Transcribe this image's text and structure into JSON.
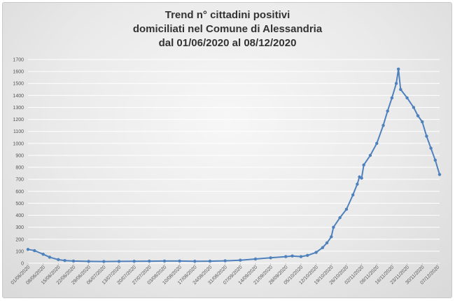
{
  "chart_data": {
    "type": "line",
    "title": [
      "Trend n° cittadini positivi",
      "domiciliati nel Comune di Alessandria",
      "dal 01/06/2020 al 08/12/2020"
    ],
    "x_start": "01/06/2020",
    "x_end": "08/12/2020",
    "x_tick_labels": [
      "01/06/2020",
      "08/06/2020",
      "15/06/2020",
      "22/06/2020",
      "29/06/2020",
      "06/07/2020",
      "13/07/2020",
      "20/07/2020",
      "27/07/2020",
      "03/08/2020",
      "10/08/2020",
      "17/08/2020",
      "24/08/2020",
      "31/08/2020",
      "07/09/2020",
      "14/09/2020",
      "21/09/2020",
      "28/09/2020",
      "05/10/2020",
      "12/10/2020",
      "19/10/2020",
      "26/10/2020",
      "02/11/2020",
      "09/11/2020",
      "16/11/2020",
      "23/11/2020",
      "30/11/2020",
      "07/12/2020"
    ],
    "ylim": [
      0,
      1700
    ],
    "y_ticks": [
      0,
      100,
      200,
      300,
      400,
      500,
      600,
      700,
      800,
      900,
      1000,
      1100,
      1200,
      1300,
      1400,
      1500,
      1600,
      1700
    ],
    "grid": "horizontal",
    "legend": "none",
    "color": "#4f81bd",
    "series": [
      {
        "points": [
          [
            "01/06/2020",
            115
          ],
          [
            "04/06/2020",
            105
          ],
          [
            "08/06/2020",
            75
          ],
          [
            "11/06/2020",
            50
          ],
          [
            "15/06/2020",
            30
          ],
          [
            "18/06/2020",
            22
          ],
          [
            "22/06/2020",
            18
          ],
          [
            "29/06/2020",
            15
          ],
          [
            "06/07/2020",
            14
          ],
          [
            "13/07/2020",
            15
          ],
          [
            "20/07/2020",
            16
          ],
          [
            "27/07/2020",
            17
          ],
          [
            "03/08/2020",
            18
          ],
          [
            "10/08/2020",
            18
          ],
          [
            "17/08/2020",
            16
          ],
          [
            "24/08/2020",
            17
          ],
          [
            "31/08/2020",
            20
          ],
          [
            "07/09/2020",
            25
          ],
          [
            "14/09/2020",
            35
          ],
          [
            "21/09/2020",
            45
          ],
          [
            "28/09/2020",
            55
          ],
          [
            "01/10/2020",
            60
          ],
          [
            "05/10/2020",
            55
          ],
          [
            "08/10/2020",
            65
          ],
          [
            "12/10/2020",
            90
          ],
          [
            "15/10/2020",
            130
          ],
          [
            "17/10/2020",
            170
          ],
          [
            "19/10/2020",
            220
          ],
          [
            "20/10/2020",
            300
          ],
          [
            "23/10/2020",
            380
          ],
          [
            "26/10/2020",
            450
          ],
          [
            "29/10/2020",
            570
          ],
          [
            "31/10/2020",
            660
          ],
          [
            "01/11/2020",
            720
          ],
          [
            "02/11/2020",
            710
          ],
          [
            "03/11/2020",
            820
          ],
          [
            "06/11/2020",
            900
          ],
          [
            "09/11/2020",
            1000
          ],
          [
            "12/11/2020",
            1150
          ],
          [
            "14/11/2020",
            1270
          ],
          [
            "16/11/2020",
            1380
          ],
          [
            "18/11/2020",
            1500
          ],
          [
            "19/11/2020",
            1620
          ],
          [
            "20/11/2020",
            1450
          ],
          [
            "23/11/2020",
            1380
          ],
          [
            "26/11/2020",
            1300
          ],
          [
            "28/11/2020",
            1230
          ],
          [
            "30/11/2020",
            1180
          ],
          [
            "02/12/2020",
            1060
          ],
          [
            "04/12/2020",
            960
          ],
          [
            "06/12/2020",
            860
          ],
          [
            "08/12/2020",
            740
          ]
        ]
      }
    ]
  }
}
